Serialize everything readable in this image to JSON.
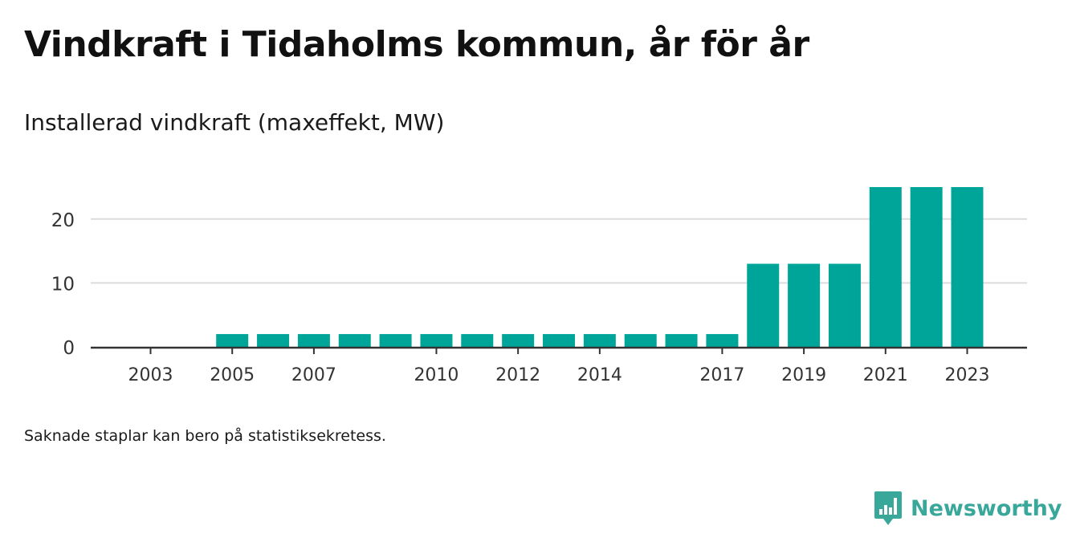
{
  "title": "Vindkraft i Tidaholms kommun, år för år",
  "subtitle": "Installerad vindkraft (maxeffekt, MW)",
  "note": "Saknade staplar kan bero på statistiksekretess.",
  "brand": {
    "name": "Newsworthy",
    "icon": "newsworthy-logo-icon",
    "color": "#3aa79b"
  },
  "chart_data": {
    "type": "bar",
    "title": "Vindkraft i Tidaholms kommun, år för år",
    "subtitle": "Installerad vindkraft (maxeffekt, MW)",
    "xlabel": "",
    "ylabel": "",
    "categories": [
      2003,
      2004,
      2005,
      2006,
      2007,
      2008,
      2009,
      2010,
      2011,
      2012,
      2013,
      2014,
      2015,
      2016,
      2017,
      2018,
      2019,
      2020,
      2021,
      2022,
      2023
    ],
    "values": [
      0,
      0,
      2,
      2,
      2,
      2,
      2,
      2,
      2,
      2,
      2,
      2,
      2,
      2,
      2,
      13,
      13,
      13,
      25,
      25,
      25
    ],
    "x_tick_labels": [
      "2003",
      "2005",
      "2007",
      "2010",
      "2012",
      "2014",
      "2017",
      "2019",
      "2021",
      "2023"
    ],
    "y_ticks": [
      0,
      10,
      20
    ],
    "ylim": [
      0,
      25
    ],
    "grid": true,
    "bar_color": "#00a59a"
  }
}
